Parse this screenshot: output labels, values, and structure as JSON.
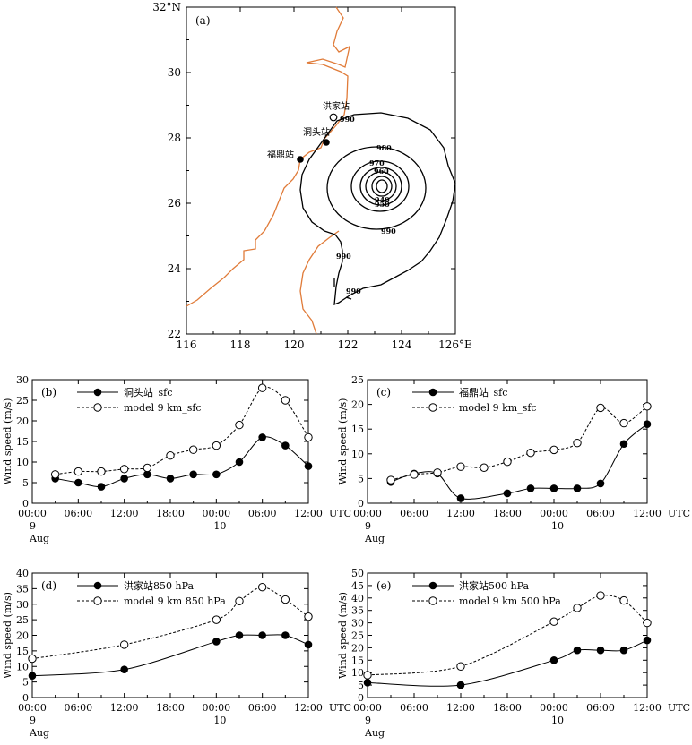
{
  "chart_data": [
    {
      "panel": "(a)",
      "type": "contour-map",
      "x_ticks": [
        "116",
        "118",
        "120",
        "122",
        "124",
        "126°E"
      ],
      "y_ticks": [
        "22",
        "24",
        "26",
        "28",
        "30",
        "32°N"
      ],
      "xlim": [
        116,
        126
      ],
      "ylim": [
        22,
        32
      ],
      "stations": [
        {
          "name": "洪家站",
          "lon": 121.4,
          "lat": 28.6,
          "marker": "open"
        },
        {
          "name": "洞头站",
          "lon": 121.1,
          "lat": 27.8,
          "marker": "filled"
        },
        {
          "name": "福鼎站",
          "lon": 120.2,
          "lat": 27.3,
          "marker": "filled"
        }
      ],
      "contour_labels": [
        "990",
        "980",
        "970",
        "960",
        "950",
        "940",
        "990",
        "990",
        "990"
      ],
      "colors": {
        "coastline": "#e07b39",
        "contour": "#000000"
      }
    },
    {
      "panel": "(b)",
      "type": "line",
      "ylabel": "Wind speed (m/s)",
      "ylim": [
        0,
        30
      ],
      "y_ticks": [
        "0",
        "5",
        "10",
        "15",
        "20",
        "25",
        "30"
      ],
      "x_ticks": [
        "00:00",
        "06:00",
        "12:00",
        "18:00",
        "00:00",
        "06:00",
        "12:00"
      ],
      "x_unit": "UTC",
      "x_sub": [
        "9",
        "10"
      ],
      "x_month": "Aug",
      "xlim": [
        0,
        36
      ],
      "legend": "top-left",
      "series": [
        {
          "name": "洞头站_sfc",
          "style": "solid-filled",
          "x": [
            3,
            6,
            9,
            12,
            15,
            18,
            21,
            24,
            27,
            30,
            33,
            36
          ],
          "values": [
            6,
            5,
            4,
            6,
            7,
            6,
            7,
            7,
            10,
            16,
            14,
            9
          ]
        },
        {
          "name": "model 9 km_sfc",
          "style": "dashed-open",
          "x": [
            3,
            6,
            9,
            12,
            15,
            18,
            21,
            24,
            27,
            30,
            33,
            36
          ],
          "values": [
            7,
            7.7,
            7.7,
            8.3,
            8.6,
            11.6,
            13,
            14,
            19,
            28,
            25,
            16
          ]
        }
      ]
    },
    {
      "panel": "(c)",
      "type": "line",
      "ylabel": "Wind speed (m/s)",
      "ylim": [
        0,
        25
      ],
      "y_ticks": [
        "0",
        "5",
        "10",
        "15",
        "20",
        "25"
      ],
      "x_ticks": [
        "00:00",
        "06:00",
        "12:00",
        "18:00",
        "00:00",
        "06:00",
        "12:00"
      ],
      "x_unit": "UTC",
      "x_sub": [
        "9",
        "10"
      ],
      "x_month": "Aug",
      "xlim": [
        0,
        36
      ],
      "legend": "top-left",
      "series": [
        {
          "name": "福鼎站_sfc",
          "style": "solid-filled",
          "x": [
            3,
            6,
            9,
            12,
            18,
            21,
            24,
            27,
            30,
            33,
            36
          ],
          "values": [
            4.3,
            6,
            6,
            1,
            2,
            3,
            3,
            3,
            4,
            12,
            16
          ]
        },
        {
          "name": "model 9 km_sfc",
          "style": "dashed-open",
          "x": [
            3,
            6,
            9,
            12,
            15,
            18,
            21,
            24,
            27,
            30,
            33,
            36
          ],
          "values": [
            4.7,
            5.8,
            6.2,
            7.4,
            7.2,
            8.4,
            10.2,
            10.8,
            12.2,
            19.3,
            16.2,
            19.6
          ]
        }
      ]
    },
    {
      "panel": "(d)",
      "type": "line",
      "ylabel": "Wind speed (m/s)",
      "ylim": [
        0,
        40
      ],
      "y_ticks": [
        "0",
        "5",
        "10",
        "15",
        "20",
        "25",
        "30",
        "35",
        "40"
      ],
      "x_ticks": [
        "00:00",
        "06:00",
        "12:00",
        "18:00",
        "00:00",
        "06:00",
        "12:00"
      ],
      "x_unit": "UTC",
      "x_sub": [
        "9",
        "10"
      ],
      "x_month": "Aug",
      "xlim": [
        0,
        36
      ],
      "legend": "top-left",
      "series": [
        {
          "name": "洪家站850 hPa",
          "style": "solid-filled",
          "x": [
            0,
            12,
            24,
            27,
            30,
            33,
            36
          ],
          "values": [
            7,
            9,
            18,
            20,
            20,
            20,
            17
          ]
        },
        {
          "name": "model 9 km 850 hPa",
          "style": "dashed-open",
          "x": [
            0,
            12,
            24,
            27,
            30,
            33,
            36
          ],
          "values": [
            12.5,
            17,
            25,
            31,
            35.5,
            31.5,
            26
          ]
        }
      ]
    },
    {
      "panel": "(e)",
      "type": "line",
      "ylabel": "Wind speed (m/s)",
      "ylim": [
        0,
        50
      ],
      "y_ticks": [
        "0",
        "5",
        "10",
        "15",
        "20",
        "25",
        "30",
        "35",
        "40",
        "45",
        "50"
      ],
      "x_ticks": [
        "00:00",
        "06:00",
        "12:00",
        "18:00",
        "00:00",
        "06:00",
        "12:00"
      ],
      "x_unit": "UTC",
      "x_sub": [
        "9",
        "10"
      ],
      "x_month": "Aug",
      "xlim": [
        0,
        36
      ],
      "legend": "top-left",
      "series": [
        {
          "name": "洪家站500 hPa",
          "style": "solid-filled",
          "x": [
            0,
            12,
            24,
            27,
            30,
            33,
            36
          ],
          "values": [
            6,
            5,
            15,
            19,
            19,
            19,
            23
          ]
        },
        {
          "name": "model 9 km 500 hPa",
          "style": "dashed-open",
          "x": [
            0,
            12,
            24,
            27,
            30,
            33,
            36
          ],
          "values": [
            9,
            12.5,
            30.5,
            36,
            41,
            39,
            30
          ]
        }
      ]
    }
  ]
}
